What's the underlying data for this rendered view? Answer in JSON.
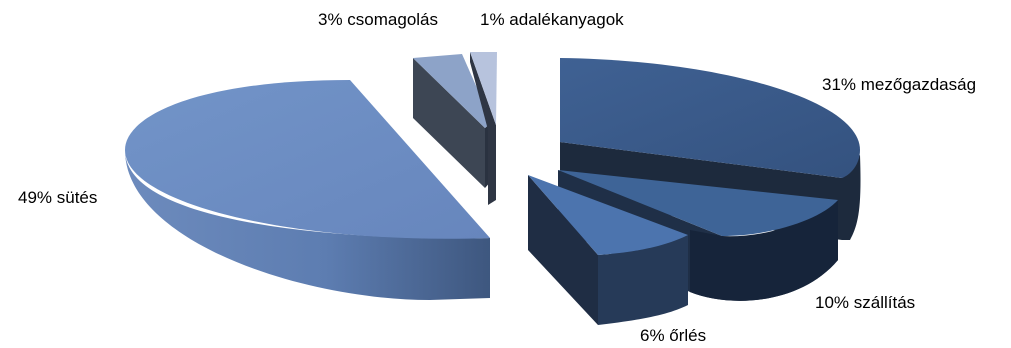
{
  "chart_data": {
    "type": "pie",
    "style": "3d-exploded",
    "slices": [
      {
        "label": "31% mezőgazdaság",
        "value": 31,
        "color": "#3b5a86"
      },
      {
        "label": "10% szállítás",
        "value": 10,
        "color": "#3d6397"
      },
      {
        "label": "6% őrlés",
        "value": 6,
        "color": "#4a72ac"
      },
      {
        "label": "49% sütés",
        "value": 49,
        "color": "#6b8bc0"
      },
      {
        "label": "3% csomagolás",
        "value": 3,
        "color": "#7f9bc8"
      },
      {
        "label": "1% adalékanyagok",
        "value": 1,
        "color": "#aebcd9"
      }
    ],
    "legend": "none"
  }
}
